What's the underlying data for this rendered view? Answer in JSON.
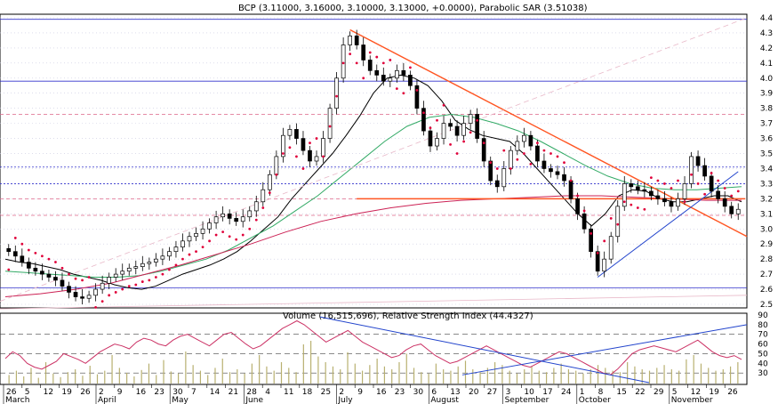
{
  "header": {
    "price_title": "BCP (3.11000, 3.16000, 3.10000, 3.13000, +0.0000), Parabolic SAR (3.51038)",
    "lower_title": "Volume (16,515,696), Relative Strength Index (44.4327)"
  },
  "colors": {
    "background": "#ffffff",
    "grid_blue": "#3333cc",
    "candle_up": "#ffffff",
    "candle_down": "#000000",
    "sar": "#e0003a",
    "ma_short": "#000000",
    "ma_mid": "#33aa66",
    "ma_long": "#cc2255",
    "trendline": "#ff5522",
    "support_blue": "#2244cc",
    "rsi": "#cc3366",
    "volume": "#b8b070"
  },
  "chart_data": [
    {
      "type": "candlestick",
      "title": "BCP (3.11000, 3.16000, 3.10000, 3.13000, +0.0000), Parabolic SAR (3.51038)",
      "last": {
        "open": 3.11,
        "high": 3.16,
        "low": 3.1,
        "close": 3.13,
        "change": 0.0
      },
      "sar_last": 3.51038,
      "ylim": [
        2.5,
        4.4
      ],
      "yticks": [
        "4.4",
        "4.3",
        "4.2",
        "4.1",
        "4.0",
        "3.9",
        "3.8",
        "3.7",
        "3.6",
        "3.5",
        "3.4",
        "3.3",
        "3.2",
        "3.1",
        "3.0",
        "2.9",
        "2.8",
        "2.7",
        "2.6",
        "2.5"
      ],
      "horizontal_lines": [
        4.39,
        3.98,
        3.76,
        3.41,
        3.3,
        3.2,
        3.09,
        2.61
      ],
      "closes": [
        2.85,
        2.82,
        2.78,
        2.74,
        2.72,
        2.7,
        2.68,
        2.66,
        2.62,
        2.58,
        2.55,
        2.54,
        2.56,
        2.6,
        2.64,
        2.68,
        2.7,
        2.72,
        2.74,
        2.75,
        2.77,
        2.78,
        2.8,
        2.82,
        2.85,
        2.88,
        2.92,
        2.95,
        2.97,
        3.0,
        3.04,
        3.08,
        3.1,
        3.07,
        3.05,
        3.08,
        3.12,
        3.18,
        3.26,
        3.36,
        3.48,
        3.62,
        3.66,
        3.6,
        3.52,
        3.45,
        3.48,
        3.6,
        3.8,
        4.0,
        4.22,
        4.28,
        4.22,
        4.12,
        4.05,
        4.02,
        3.98,
        4.0,
        4.05,
        4.02,
        3.95,
        3.8,
        3.65,
        3.55,
        3.6,
        3.7,
        3.68,
        3.62,
        3.7,
        3.76,
        3.6,
        3.45,
        3.32,
        3.28,
        3.4,
        3.52,
        3.58,
        3.62,
        3.55,
        3.45,
        3.4,
        3.38,
        3.36,
        3.32,
        3.2,
        3.1,
        3.0,
        2.85,
        2.72,
        2.8,
        2.95,
        3.15,
        3.3,
        3.28,
        3.26,
        3.25,
        3.22,
        3.2,
        3.18,
        3.15,
        3.2,
        3.3,
        3.48,
        3.42,
        3.35,
        3.25,
        3.2,
        3.15,
        3.1,
        3.13
      ],
      "moving_averages": [
        {
          "name": "short",
          "values": [
            2.8,
            2.78,
            2.77,
            2.75,
            2.73,
            2.7,
            2.68,
            2.66,
            2.63,
            2.61,
            2.6,
            2.62,
            2.66,
            2.7,
            2.73,
            2.76,
            2.8,
            2.85,
            2.92,
            3.0,
            3.08,
            3.2,
            3.3,
            3.4,
            3.5,
            3.62,
            3.75,
            3.9,
            4.0,
            4.02,
            4.0,
            3.95,
            3.85,
            3.72,
            3.66,
            3.62,
            3.6,
            3.58,
            3.5,
            3.4,
            3.3,
            3.2,
            3.1,
            3.02,
            3.1,
            3.22,
            3.26,
            3.25,
            3.2,
            3.18,
            3.18,
            3.2,
            3.22,
            3.22,
            3.18
          ]
        },
        {
          "name": "mid",
          "values": [
            2.72,
            2.71,
            2.7,
            2.69,
            2.68,
            2.68,
            2.69,
            2.72,
            2.76,
            2.8,
            2.86,
            2.94,
            3.02,
            3.12,
            3.22,
            3.34,
            3.46,
            3.58,
            3.68,
            3.74,
            3.76,
            3.74,
            3.7,
            3.65,
            3.58,
            3.5,
            3.42,
            3.35,
            3.3,
            3.27,
            3.26,
            3.26,
            3.27,
            3.28
          ]
        },
        {
          "name": "long",
          "values": [
            2.55,
            2.57,
            2.6,
            2.64,
            2.7,
            2.76,
            2.83,
            2.9,
            2.98,
            3.05,
            3.1,
            3.14,
            3.17,
            3.19,
            3.2,
            3.21,
            3.22,
            3.22,
            3.21,
            3.2,
            3.19,
            3.19
          ]
        }
      ]
    },
    {
      "type": "line",
      "title": "Volume (16,515,696), Relative Strength Index (44.4327)",
      "volume_last": 16515696,
      "rsi_last": 44.4327,
      "ylim": [
        20,
        90
      ],
      "yticks": [
        "90",
        "80",
        "70",
        "60",
        "50",
        "40",
        "30"
      ],
      "reference_levels": [
        70,
        50,
        30
      ],
      "rsi": [
        45,
        52,
        48,
        40,
        36,
        34,
        38,
        42,
        50,
        47,
        44,
        40,
        46,
        52,
        56,
        60,
        58,
        55,
        62,
        66,
        64,
        60,
        58,
        64,
        68,
        70,
        66,
        62,
        58,
        64,
        70,
        72,
        66,
        60,
        55,
        58,
        64,
        70,
        76,
        80,
        84,
        80,
        74,
        68,
        62,
        66,
        70,
        74,
        68,
        62,
        58,
        54,
        50,
        46,
        48,
        54,
        58,
        60,
        54,
        48,
        44,
        40,
        42,
        46,
        50,
        54,
        58,
        54,
        50,
        46,
        42,
        38,
        36,
        40,
        44,
        48,
        52,
        50,
        46,
        42,
        38,
        34,
        30,
        28,
        34,
        42,
        50,
        54,
        56,
        58,
        56,
        54,
        52,
        56,
        60,
        64,
        58,
        52,
        48,
        46,
        48,
        44
      ],
      "volume": [
        12,
        18,
        10,
        22,
        8,
        30,
        14,
        9,
        16,
        20,
        11,
        25,
        13,
        18,
        40,
        22,
        15,
        10,
        19,
        28,
        12,
        33,
        17,
        14,
        45,
        26,
        18,
        12,
        22,
        35,
        16,
        20,
        14,
        28,
        40,
        24,
        18,
        30,
        22,
        16,
        55,
        60,
        38,
        30,
        24,
        20,
        44,
        28,
        18,
        26,
        35,
        24,
        20,
        30,
        42,
        22,
        16,
        14,
        28,
        20,
        18,
        24,
        32,
        20,
        16,
        22,
        30,
        26,
        18,
        14,
        20,
        24,
        18,
        16,
        22,
        28,
        20,
        18,
        14,
        20,
        26,
        22,
        18,
        16,
        30,
        24,
        20,
        18,
        22,
        26,
        20,
        18,
        34,
        40,
        28,
        22,
        18,
        20,
        24,
        30
      ]
    }
  ],
  "x_axis": {
    "days": [
      "26",
      "5",
      "12",
      "19",
      "26",
      "2",
      "9",
      "16",
      "23",
      "30",
      "7",
      "14",
      "21",
      "28",
      "4",
      "11",
      "18",
      "25",
      "2",
      "9",
      "16",
      "23",
      "30",
      "6",
      "13",
      "20",
      "27",
      "3",
      "10",
      "17",
      "24",
      "1",
      "8",
      "15",
      "22",
      "29",
      "5",
      "12",
      "19",
      "26"
    ],
    "months": [
      "March",
      "April",
      "May",
      "June",
      "July",
      "August",
      "September",
      "October",
      "November"
    ]
  }
}
